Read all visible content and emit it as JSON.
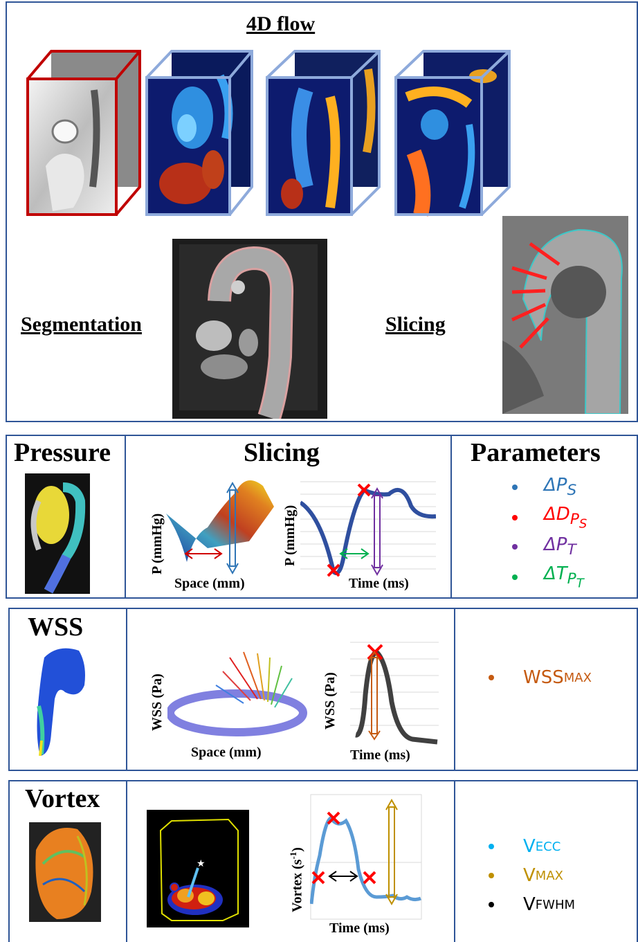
{
  "top": {
    "title": "4D flow",
    "segmentation_label": "Segmentation",
    "slicing_label": "Slicing"
  },
  "pressure": {
    "heading": "Pressure",
    "center_heading": "Slicing",
    "param_heading": "Parameters",
    "plot1": {
      "ylabel": "P (mmHg)",
      "xlabel": "Space (mm)"
    },
    "plot2": {
      "ylabel": "P (mmHg)",
      "xlabel": "Time (ms)"
    },
    "params": [
      {
        "main": "ΔP",
        "sub": "S",
        "subsub": "",
        "color": "#2e75b6"
      },
      {
        "main": "ΔD",
        "sub": "P",
        "subsub": "S",
        "color": "#ff0000"
      },
      {
        "main": "ΔP",
        "sub": "T",
        "subsub": "",
        "color": "#7030a0"
      },
      {
        "main": "ΔT",
        "sub": "P",
        "subsub": "T",
        "color": "#00b050"
      }
    ]
  },
  "wss": {
    "heading": "WSS",
    "plot1": {
      "ylabel": "WSS (Pa)",
      "xlabel": "Space (mm)"
    },
    "plot2": {
      "ylabel": "WSS (Pa)",
      "xlabel": "Time (ms)"
    },
    "params": [
      {
        "main": "WSS",
        "sub": "MAX",
        "color": "#c55a11"
      }
    ]
  },
  "vortex": {
    "heading": "Vortex",
    "plot": {
      "ylabel": "Vortex (s",
      "ylabel_sup": "-1",
      "ylabel_end": ")",
      "xlabel": "Time (ms)"
    },
    "params": [
      {
        "main": "V",
        "sub": "ECC",
        "color": "#00b0f0"
      },
      {
        "main": "V",
        "sub": "MAX",
        "color": "#bf9000"
      },
      {
        "main": "V",
        "sub": "FWHM",
        "color": "#000000"
      }
    ]
  },
  "colors": {
    "frame": "#2f5597",
    "accent_red": "#c00000",
    "cube_blue": "#8eaadb"
  }
}
